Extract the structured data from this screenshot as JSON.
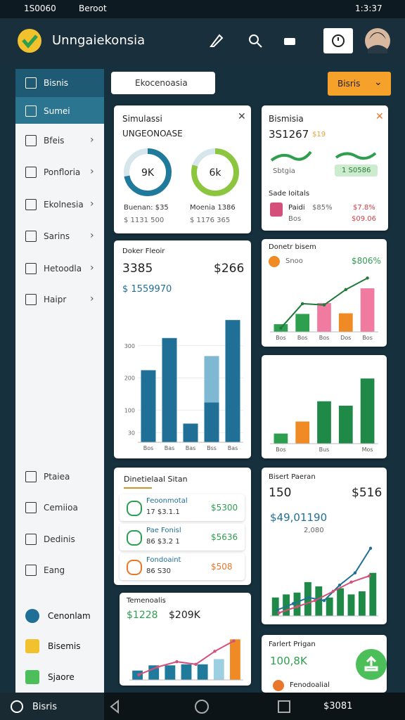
{
  "status_bar": {
    "left": "1S0060",
    "network": "Beroot",
    "time": "1:3:37"
  },
  "header": {
    "title": "Unngaiekonsia"
  },
  "sidebar": {
    "top_items": [
      "Bisnis",
      "Sumei"
    ],
    "items": [
      "Bfeis",
      "Ponfloria",
      "Ekolnesia",
      "Sarins",
      "Hetoodla",
      "Haipr"
    ],
    "lower_items": [
      "Ptaiea",
      "Cemiioa",
      "Dedinis",
      "Eang"
    ],
    "bottom_items": [
      "Cenonlam",
      "Bisemis",
      "Sjaore"
    ]
  },
  "toolbar": {
    "search": "Ekocenoasia",
    "button": "Bisris"
  },
  "simulation": {
    "title": "Simulassi",
    "subtitle": "UNGEONOASE",
    "rings": [
      {
        "label": "9K",
        "fraction": 72,
        "color": "#1f7a9c"
      },
      {
        "label": "6k",
        "fraction": 80,
        "color": "#8cc63f"
      }
    ],
    "stats": [
      "Buenan: $35",
      "Moenia 1386"
    ],
    "totals": [
      "$ 1131 500",
      "$ 1176 365"
    ]
  },
  "business": {
    "title": "Bismisia",
    "value": "3S1267",
    "badge": "$19",
    "tags": [
      "Sbtgia",
      "1 S0586"
    ],
    "section": "Sade Ioitals",
    "rows": [
      {
        "label": "Paidi",
        "value": "$85%",
        "change": "$7.8%"
      },
      {
        "label": "Bos",
        "change": "$09.06"
      }
    ]
  },
  "report": {
    "title": "Doker Fleoir",
    "value": "3385",
    "amount": "$266",
    "total": "$ 1559970",
    "chart": {
      "categories": [
        "Bos",
        "Bas",
        "Bas",
        "Bss",
        "Bas"
      ],
      "series": [
        {
          "color": "#1f6f96",
          "values": [
            224,
            324,
            58,
            124,
            380
          ]
        },
        {
          "color": "#7fb8d2",
          "values": [
            0,
            0,
            0,
            144,
            0
          ]
        }
      ],
      "ylim": [
        0,
        400
      ],
      "yticks": [
        30,
        100,
        200,
        300
      ]
    }
  },
  "growth": {
    "title": "Donetr bisem",
    "label": "Snoo",
    "value": "$806%",
    "chart": {
      "categories": [
        "Bos",
        "Bos",
        "Bos",
        "Dos",
        "Bos"
      ],
      "values": [
        12,
        28,
        45,
        29,
        68
      ],
      "colors": [
        "#2e9e4f",
        "#2e9e4f",
        "#f07aa0",
        "#f08a24",
        "#f07aa0"
      ],
      "ylim": [
        0,
        90
      ],
      "line": {
        "color": "#1f7a3a",
        "values": [
          6,
          44,
          42,
          66,
          84
        ]
      }
    }
  },
  "summary_chart": {
    "categories": [
      "Bos",
      null,
      "Bus",
      null,
      "Mos"
    ],
    "values": [
      16,
      35,
      67,
      60,
      103
    ],
    "colors": [
      "#2e9e4f",
      "#f08a24",
      "#1f8a48",
      "#1f8a48",
      "#1f8a48"
    ],
    "ylim": [
      0,
      120
    ]
  },
  "details": {
    "title": "Dinetielaal Sitan",
    "rows": [
      {
        "name": "Feoonmotal",
        "sub": "17 $3.1.1",
        "amount": "$5300"
      },
      {
        "name": "Pae Fonisl",
        "sub": "86 $3.2 1",
        "amount": "$5636"
      },
      {
        "name": "Fondoaint",
        "sub": "86 S30",
        "amount": "$508"
      }
    ]
  },
  "forecast": {
    "title": "Bisert Paeran",
    "count": "150",
    "value": "$516",
    "total": "$49,01190",
    "sub": "2,080",
    "chart": {
      "values": [
        30,
        35,
        38,
        55,
        48,
        30,
        45,
        35,
        40,
        70
      ],
      "colors": [
        "#1f8a48",
        "#1f8a48",
        "#1f8a48",
        "#1f8a48",
        "#1f8a48",
        "#1f8a48",
        "#1f8a48",
        "#1f8a48",
        "#1f8a48",
        "#1f8a48"
      ],
      "ylim": [
        0,
        120
      ],
      "line": {
        "color": "#1f6f96",
        "values": [
          10,
          20,
          30,
          25,
          50,
          70,
          110
        ]
      },
      "line2": {
        "color": "#d4507a",
        "values": [
          5,
          15,
          25,
          40,
          55,
          65
        ]
      }
    }
  },
  "trends": {
    "title": "Temenoalis",
    "left": "$1228",
    "right": "$209K",
    "chart": {
      "values": [
        18,
        28,
        28,
        30,
        30,
        40,
        78
      ],
      "colors": [
        "#1f7a9c",
        "#1f7a9c",
        "#1f7a9c",
        "#1f7a9c",
        "#1f7a9c",
        "#9ccfe0",
        "#f08a24"
      ],
      "ylim": [
        0,
        100
      ],
      "line": {
        "color": "#d4507a",
        "values": [
          10,
          25,
          35,
          30,
          55,
          75
        ]
      }
    }
  },
  "profile": {
    "title": "Farlert Prigan",
    "value": "100,8K",
    "item": "Fenodoalial"
  },
  "bottom_nav": {
    "label": "Bisris",
    "value": "$3081"
  }
}
